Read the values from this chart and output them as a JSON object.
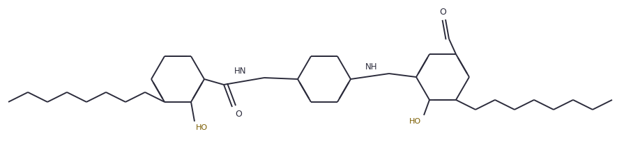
{
  "bg_color": "#ffffff",
  "line_color": "#2b2b3b",
  "line_width": 1.4,
  "dbo": 0.055,
  "figsize": [
    8.85,
    2.19
  ],
  "dpi": 100,
  "xlim": [
    0,
    8.85
  ],
  "ylim": [
    0,
    2.19
  ]
}
